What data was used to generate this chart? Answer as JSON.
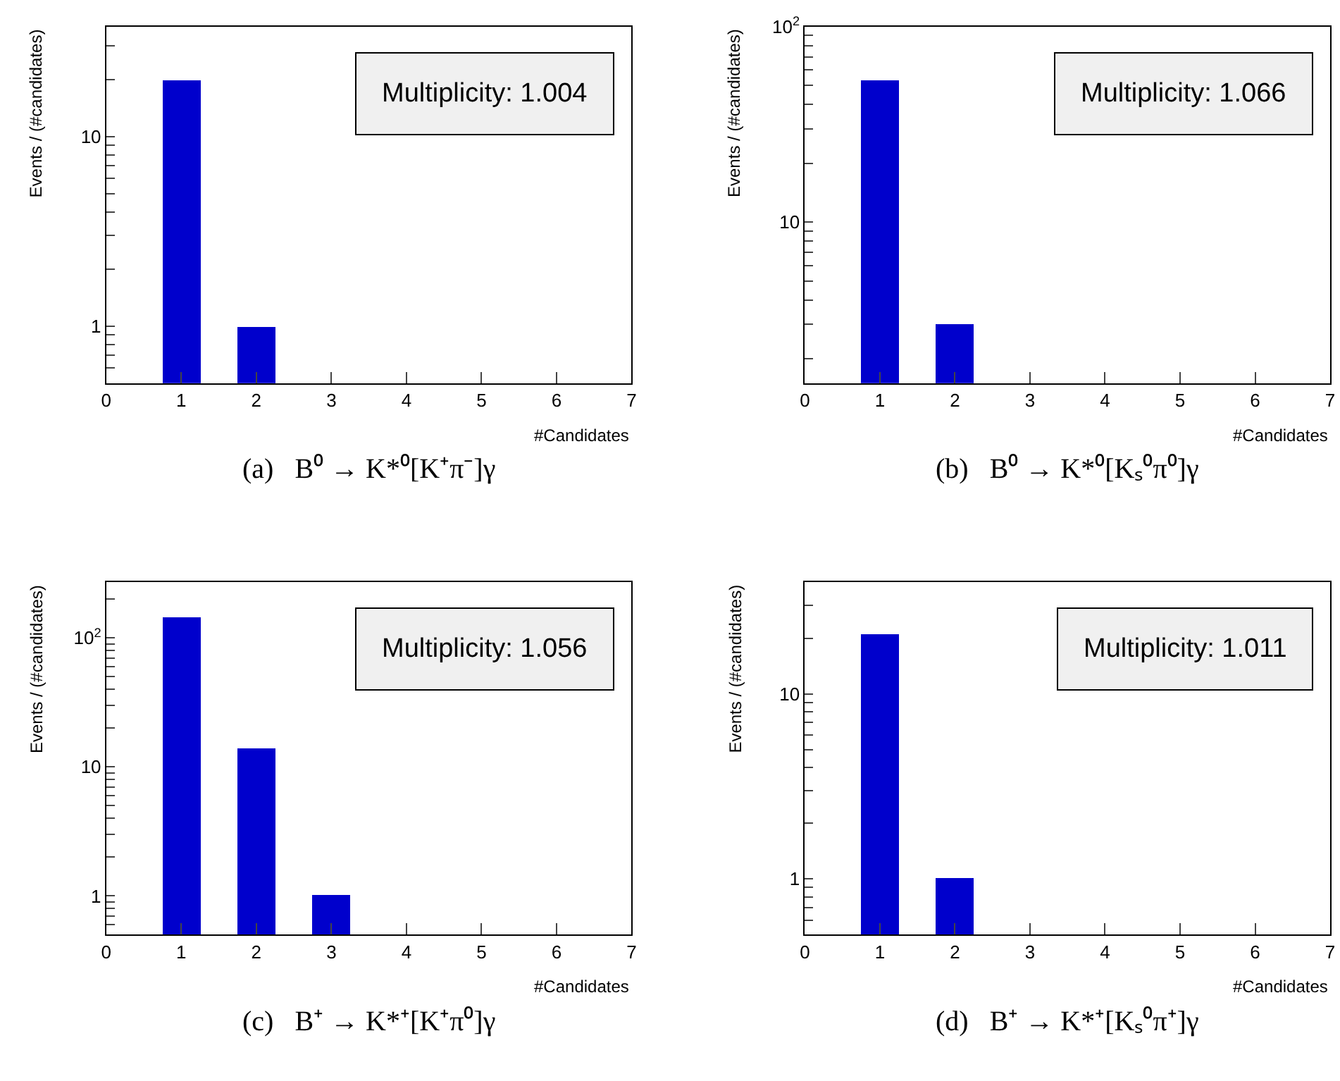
{
  "chart_data": [
    {
      "type": "bar",
      "title": "(a)   B⁰ → K*⁰[K⁺π⁻]γ",
      "xlabel": "#Candidates",
      "ylabel": "Events / (#candidates)",
      "x": [
        1,
        2
      ],
      "values": [
        20,
        1
      ],
      "color": "#0000cc",
      "log": "y",
      "xlim": [
        0,
        7
      ],
      "xticks": [
        0,
        1,
        2,
        3,
        4,
        5,
        6,
        7
      ],
      "ylim": [
        0.5,
        38
      ],
      "yticks": [
        {
          "value": 0.6,
          "label": null
        },
        {
          "value": 0.7,
          "label": null
        },
        {
          "value": 0.8,
          "label": null
        },
        {
          "value": 0.9,
          "label": null
        },
        1,
        {
          "value": 2,
          "label": null
        },
        {
          "value": 3,
          "label": null
        },
        {
          "value": 4,
          "label": null
        },
        {
          "value": 5,
          "label": null
        },
        {
          "value": 6,
          "label": null
        },
        {
          "value": 7,
          "label": null
        },
        {
          "value": 8,
          "label": null
        },
        {
          "value": 9,
          "label": null
        },
        10,
        {
          "value": 20,
          "label": null
        },
        {
          "value": 30,
          "label": null
        }
      ],
      "annotations": [
        "Multiplicity: 1.004"
      ]
    },
    {
      "type": "bar",
      "title": "(b)   B⁰ → K*⁰[Kₛ⁰π⁰]γ",
      "xlabel": "#Candidates",
      "ylabel": "Events / (#candidates)",
      "x": [
        1,
        2
      ],
      "values": [
        53,
        3
      ],
      "color": "#0000cc",
      "log": "y",
      "xlim": [
        0,
        7
      ],
      "xticks": [
        0,
        1,
        2,
        3,
        4,
        5,
        6,
        7
      ],
      "ylim": [
        1.5,
        100
      ],
      "yticks": [
        {
          "value": 2,
          "label": null
        },
        {
          "value": 3,
          "label": null
        },
        {
          "value": 4,
          "label": null
        },
        {
          "value": 5,
          "label": null
        },
        {
          "value": 6,
          "label": null
        },
        {
          "value": 7,
          "label": null
        },
        {
          "value": 8,
          "label": null
        },
        {
          "value": 9,
          "label": null
        },
        10,
        {
          "value": 20,
          "label": null
        },
        {
          "value": 30,
          "label": null
        },
        {
          "value": 40,
          "label": null
        },
        {
          "value": 50,
          "label": null
        },
        {
          "value": 60,
          "label": null
        },
        {
          "value": 70,
          "label": null
        },
        {
          "value": 80,
          "label": null
        },
        {
          "value": 90,
          "label": null
        },
        {
          "value": 100,
          "label": "10$^{2}$"
        }
      ],
      "annotations": [
        "Multiplicity: 1.066"
      ]
    },
    {
      "type": "bar",
      "title": "(c)   B⁺ → K*⁺[K⁺π⁰]γ",
      "xlabel": "#Candidates",
      "ylabel": "Events / (#candidates)",
      "x": [
        1,
        2,
        3
      ],
      "values": [
        143,
        14,
        1
      ],
      "color": "#0000cc",
      "log": "y",
      "xlim": [
        0,
        7
      ],
      "xticks": [
        0,
        1,
        2,
        3,
        4,
        5,
        6,
        7
      ],
      "ylim": [
        0.5,
        270
      ],
      "yticks": [
        {
          "value": 0.6,
          "label": null
        },
        {
          "value": 0.7,
          "label": null
        },
        {
          "value": 0.8,
          "label": null
        },
        {
          "value": 0.9,
          "label": null
        },
        1,
        {
          "value": 2,
          "label": null
        },
        {
          "value": 3,
          "label": null
        },
        {
          "value": 4,
          "label": null
        },
        {
          "value": 5,
          "label": null
        },
        {
          "value": 6,
          "label": null
        },
        {
          "value": 7,
          "label": null
        },
        {
          "value": 8,
          "label": null
        },
        {
          "value": 9,
          "label": null
        },
        10,
        {
          "value": 20,
          "label": null
        },
        {
          "value": 30,
          "label": null
        },
        {
          "value": 40,
          "label": null
        },
        {
          "value": 50,
          "label": null
        },
        {
          "value": 60,
          "label": null
        },
        {
          "value": 70,
          "label": null
        },
        {
          "value": 80,
          "label": null
        },
        {
          "value": 90,
          "label": null
        },
        {
          "value": 100,
          "label": "10$^{2}$"
        },
        {
          "value": 200,
          "label": null
        }
      ],
      "annotations": [
        "Multiplicity: 1.056"
      ]
    },
    {
      "type": "bar",
      "title": "(d)   B⁺ → K*⁺[Kₛ⁰π⁺]γ",
      "xlabel": "#Candidates",
      "ylabel": "Events / (#candidates)",
      "x": [
        1,
        2
      ],
      "values": [
        21,
        1
      ],
      "color": "#0000cc",
      "log": "y",
      "xlim": [
        0,
        7
      ],
      "xticks": [
        0,
        1,
        2,
        3,
        4,
        5,
        6,
        7
      ],
      "ylim": [
        0.5,
        40
      ],
      "yticks": [
        {
          "value": 0.6,
          "label": null
        },
        {
          "value": 0.7,
          "label": null
        },
        {
          "value": 0.8,
          "label": null
        },
        {
          "value": 0.9,
          "label": null
        },
        1,
        {
          "value": 2,
          "label": null
        },
        {
          "value": 3,
          "label": null
        },
        {
          "value": 4,
          "label": null
        },
        {
          "value": 5,
          "label": null
        },
        {
          "value": 6,
          "label": null
        },
        {
          "value": 7,
          "label": null
        },
        {
          "value": 8,
          "label": null
        },
        {
          "value": 9,
          "label": null
        },
        10,
        {
          "value": 20,
          "label": null
        },
        {
          "value": 30,
          "label": null
        }
      ],
      "annotations": [
        "Multiplicity: 1.011"
      ]
    }
  ]
}
